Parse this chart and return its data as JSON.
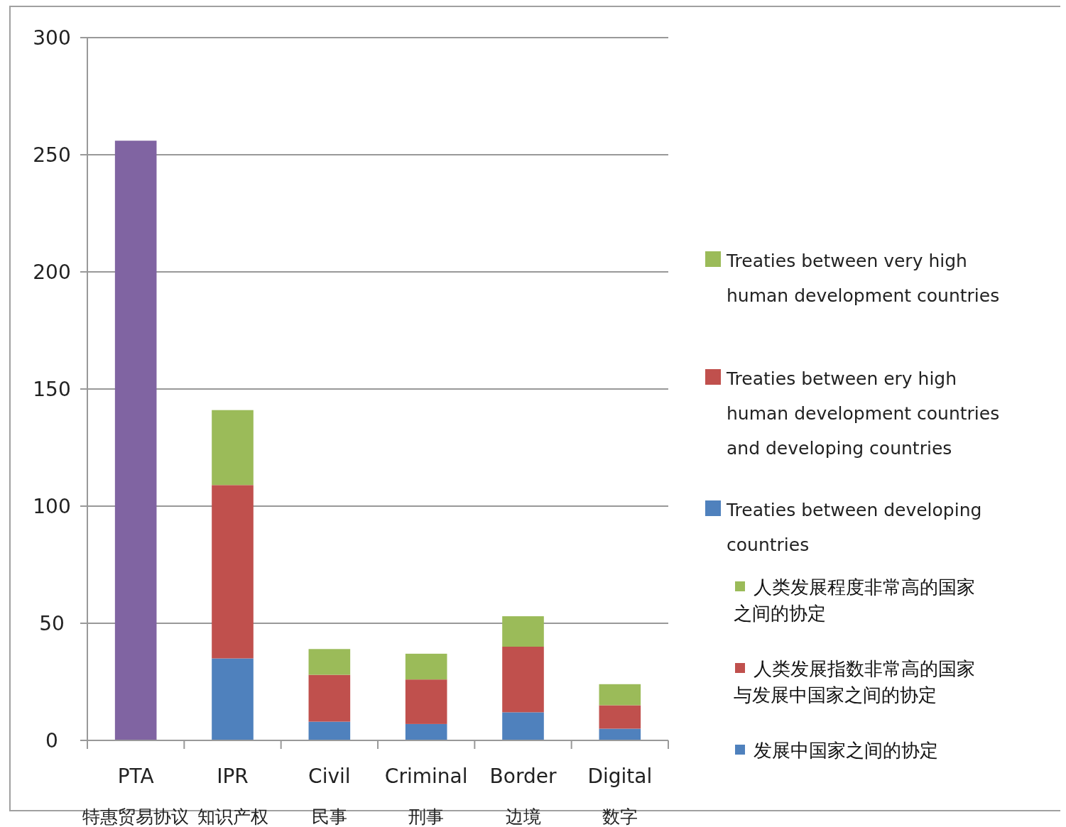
{
  "chart_data": {
    "type": "bar",
    "stacked": true,
    "categories": [
      "PTA\n特惠贸易协议",
      "IPR\n知识产权",
      "Civil\n民事",
      "Criminal\n刑事",
      "Border\n边境",
      "Digital\n数字"
    ],
    "series": [
      {
        "name": "Treaties between developing countries",
        "color": "#4f81bd",
        "values": [
          null,
          35,
          8,
          7,
          12,
          5
        ]
      },
      {
        "name": "Treaties between ery high human development countries and developing countries",
        "color": "#c0504d",
        "values": [
          null,
          74,
          20,
          19,
          28,
          10
        ]
      },
      {
        "name": "Treaties between very high human development countries",
        "color": "#9bbb59",
        "values": [
          null,
          32,
          11,
          11,
          13,
          9
        ]
      },
      {
        "color": "#8064a2",
        "values": [
          256,
          null,
          null,
          null,
          null,
          null
        ]
      }
    ],
    "ylim": [
      0,
      300
    ],
    "yticks": [
      0,
      50,
      100,
      150,
      200,
      250,
      300
    ],
    "grid": "y",
    "legend": "right",
    "annotations": [
      "人类发展程度非常高的国家之间的协定",
      "人类发展指数非常高的国家与发展中国家之间的协定",
      "发展中国家之间的协定"
    ]
  }
}
